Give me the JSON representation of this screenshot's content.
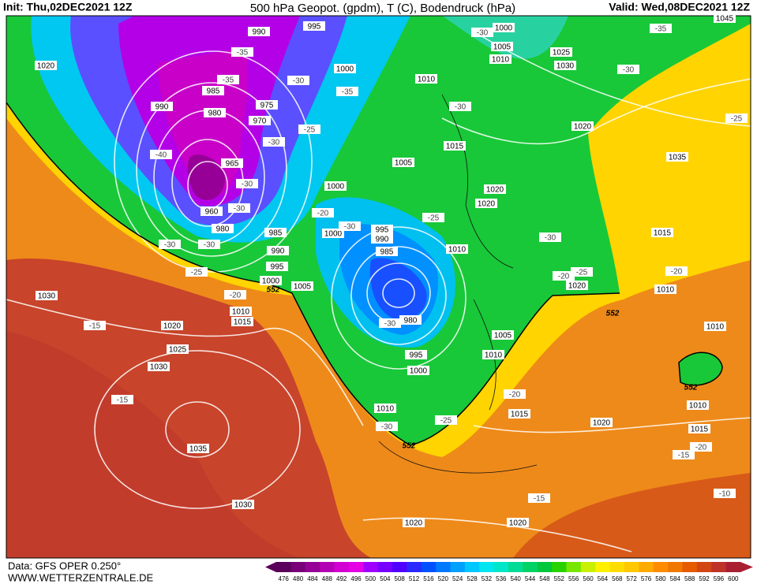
{
  "header": {
    "init": "Init: Thu,02DEC2021 12Z",
    "title": "500 hPa Geopot. (gpdm), T (C), Bodendruck (hPa)",
    "valid": "Valid: Wed,08DEC2021 12Z"
  },
  "footer": {
    "data_source": "Data: GFS OPER 0.250°",
    "website": "WWW.WETTERZENTRALE.DE"
  },
  "map": {
    "isobar_labels": [
      1020,
      990,
      995,
      1000,
      1005,
      1010,
      1025,
      1030,
      1045,
      1010,
      1000,
      985,
      990,
      980,
      975,
      970,
      965,
      960,
      980,
      1020,
      1015,
      1005,
      1000,
      1035,
      1020,
      1020,
      1000,
      995,
      990,
      985,
      985,
      990,
      995,
      1000,
      1005,
      1010,
      1015,
      1020,
      1010,
      980,
      995,
      1000,
      1005,
      1010,
      1010,
      1015,
      1020,
      1025,
      1030,
      1030,
      1035,
      1030,
      1010,
      1015,
      1020,
      1010,
      1015,
      1010,
      1020,
      1020
    ],
    "temperature_labels": [
      -35,
      -30,
      -30,
      -25,
      -30,
      -35,
      -30,
      -35,
      -35,
      -40,
      -25,
      -30,
      -30,
      -30,
      -30,
      -30,
      -25,
      -20,
      -15,
      -15,
      -20,
      -30,
      -25,
      -30,
      -25,
      -20,
      -20,
      -30,
      -25,
      -30,
      -20,
      -20,
      -15,
      -15,
      -10
    ],
    "height_labels": [
      552,
      552,
      552,
      552
    ]
  },
  "colorbar": {
    "ticks": [
      476,
      480,
      484,
      488,
      492,
      496,
      500,
      504,
      508,
      512,
      516,
      520,
      524,
      528,
      532,
      536,
      540,
      544,
      548,
      552,
      556,
      560,
      564,
      568,
      572,
      576,
      580,
      584,
      588,
      592,
      596,
      600
    ],
    "colors": [
      "#5a005a",
      "#780078",
      "#960096",
      "#b400b4",
      "#d200d2",
      "#e600e6",
      "#a000ff",
      "#7800ff",
      "#5000ff",
      "#2828ff",
      "#0050ff",
      "#0078ff",
      "#00a0ff",
      "#00c8ff",
      "#00e6f0",
      "#00e6c8",
      "#00dc96",
      "#00d264",
      "#00c83c",
      "#28d200",
      "#78e600",
      "#c8f000",
      "#fff000",
      "#ffdc00",
      "#ffc800",
      "#ffaa00",
      "#ff8c00",
      "#f07800",
      "#e65a00",
      "#d24614",
      "#be3228",
      "#aa1e32"
    ]
  }
}
